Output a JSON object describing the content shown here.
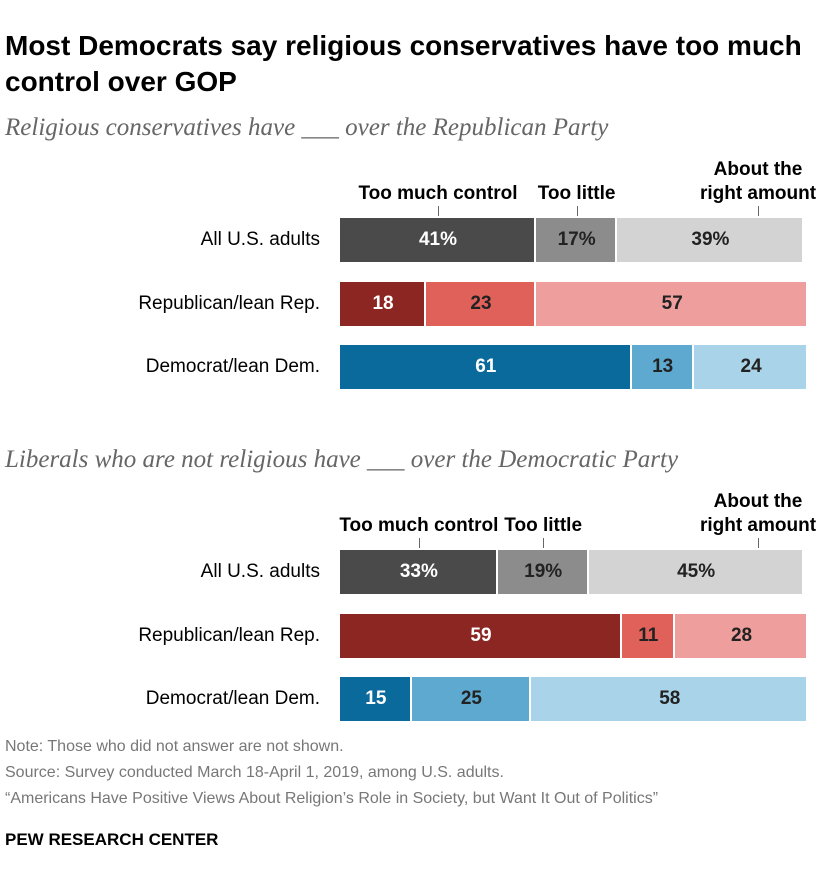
{
  "title": "Most Democrats say religious conservatives have too much control over GOP",
  "chart_data": [
    {
      "type": "bar",
      "orientation": "horizontal",
      "stacked": true,
      "subtitle": "Religious conservatives have ___ over the Republican Party",
      "categories": [
        "All U.S. adults",
        "Republican/lean Rep.",
        "Democrat/lean Dem."
      ],
      "xlim": [
        0,
        100
      ],
      "series": [
        {
          "name": "Too much control",
          "colors": [
            "#4a4a4a",
            "#8b2622",
            "#0b6a9c"
          ],
          "values": [
            41,
            18,
            61
          ],
          "value_labels": [
            "41%",
            "18",
            "61"
          ]
        },
        {
          "name": "Too little",
          "colors": [
            "#8c8c8c",
            "#e0605a",
            "#5ea9cf"
          ],
          "values": [
            17,
            23,
            13
          ],
          "value_labels": [
            "17%",
            "23",
            "13"
          ]
        },
        {
          "name": "About the right amount",
          "colors": [
            "#d3d3d3",
            "#ee9e9c",
            "#a9d3e8"
          ],
          "values": [
            39,
            57,
            24
          ],
          "value_labels": [
            "39%",
            "57",
            "24"
          ]
        }
      ]
    },
    {
      "type": "bar",
      "orientation": "horizontal",
      "stacked": true,
      "subtitle": "Liberals who are not religious have ___ over the Democratic Party",
      "categories": [
        "All U.S. adults",
        "Republican/lean Rep.",
        "Democrat/lean Dem."
      ],
      "xlim": [
        0,
        100
      ],
      "series": [
        {
          "name": "Too much control",
          "colors": [
            "#4a4a4a",
            "#8b2622",
            "#0b6a9c"
          ],
          "values": [
            33,
            59,
            15
          ],
          "value_labels": [
            "33%",
            "59",
            "15"
          ]
        },
        {
          "name": "Too little",
          "colors": [
            "#8c8c8c",
            "#e0605a",
            "#5ea9cf"
          ],
          "values": [
            19,
            11,
            25
          ],
          "value_labels": [
            "19%",
            "11",
            "25"
          ]
        },
        {
          "name": "About the right amount",
          "colors": [
            "#d3d3d3",
            "#ee9e9c",
            "#a9d3e8"
          ],
          "values": [
            45,
            28,
            58
          ],
          "value_labels": [
            "45%",
            "28",
            "58"
          ]
        }
      ]
    }
  ],
  "notes": [
    "Note: Those who did not answer are not shown.",
    "Source: Survey conducted March 18-April 1, 2019, among U.S. adults.",
    "“Americans Have Positive Views About Religion’s Role in Society, but Want It Out of Politics”"
  ],
  "source_org": "PEW RESEARCH CENTER"
}
